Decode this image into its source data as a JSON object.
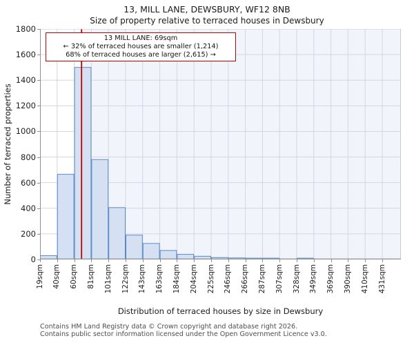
{
  "titles": {
    "line1": "13, MILL LANE, DEWSBURY, WF12 8NB",
    "line2": "Size of property relative to terraced houses in Dewsbury"
  },
  "annotation": {
    "line1": "13 MILL LANE: 69sqm",
    "line2": "← 32% of terraced houses are smaller (1,214)",
    "line3": "68% of terraced houses are larger (2,615) →"
  },
  "chart_data": {
    "type": "bar",
    "title": "Size of property relative to terraced houses in Dewsbury",
    "xlabel": "Distribution of terraced houses by size in Dewsbury",
    "ylabel": "Number of terraced properties",
    "categories": [
      "19sqm",
      "40sqm",
      "60sqm",
      "81sqm",
      "101sqm",
      "122sqm",
      "143sqm",
      "163sqm",
      "184sqm",
      "204sqm",
      "225sqm",
      "246sqm",
      "266sqm",
      "287sqm",
      "307sqm",
      "328sqm",
      "349sqm",
      "369sqm",
      "390sqm",
      "410sqm",
      "431sqm"
    ],
    "values": [
      30,
      665,
      1500,
      780,
      405,
      190,
      125,
      70,
      40,
      25,
      15,
      12,
      10,
      10,
      0,
      10,
      0,
      0,
      0,
      0
    ],
    "ylim": [
      0,
      1800
    ],
    "yticks": [
      0,
      200,
      400,
      600,
      800,
      1000,
      1200,
      1400,
      1600,
      1800
    ],
    "grid": "on",
    "marker": {
      "label": "13 MILL LANE",
      "value_sqm": 69
    },
    "colors": {
      "bar_fill": "#d5e1f3",
      "bar_edge": "#5b8ac2",
      "marker_red": "#c00000",
      "larger_region_tint": "#f1f4fb",
      "gridline": "#d4d6de",
      "spine_dark": "#8c8e96",
      "spine_light": "#c8cad2"
    }
  },
  "footer": {
    "line1": "Contains HM Land Registry data © Crown copyright and database right 2026.",
    "line2": "Contains public sector information licensed under the Open Government Licence v3.0."
  }
}
